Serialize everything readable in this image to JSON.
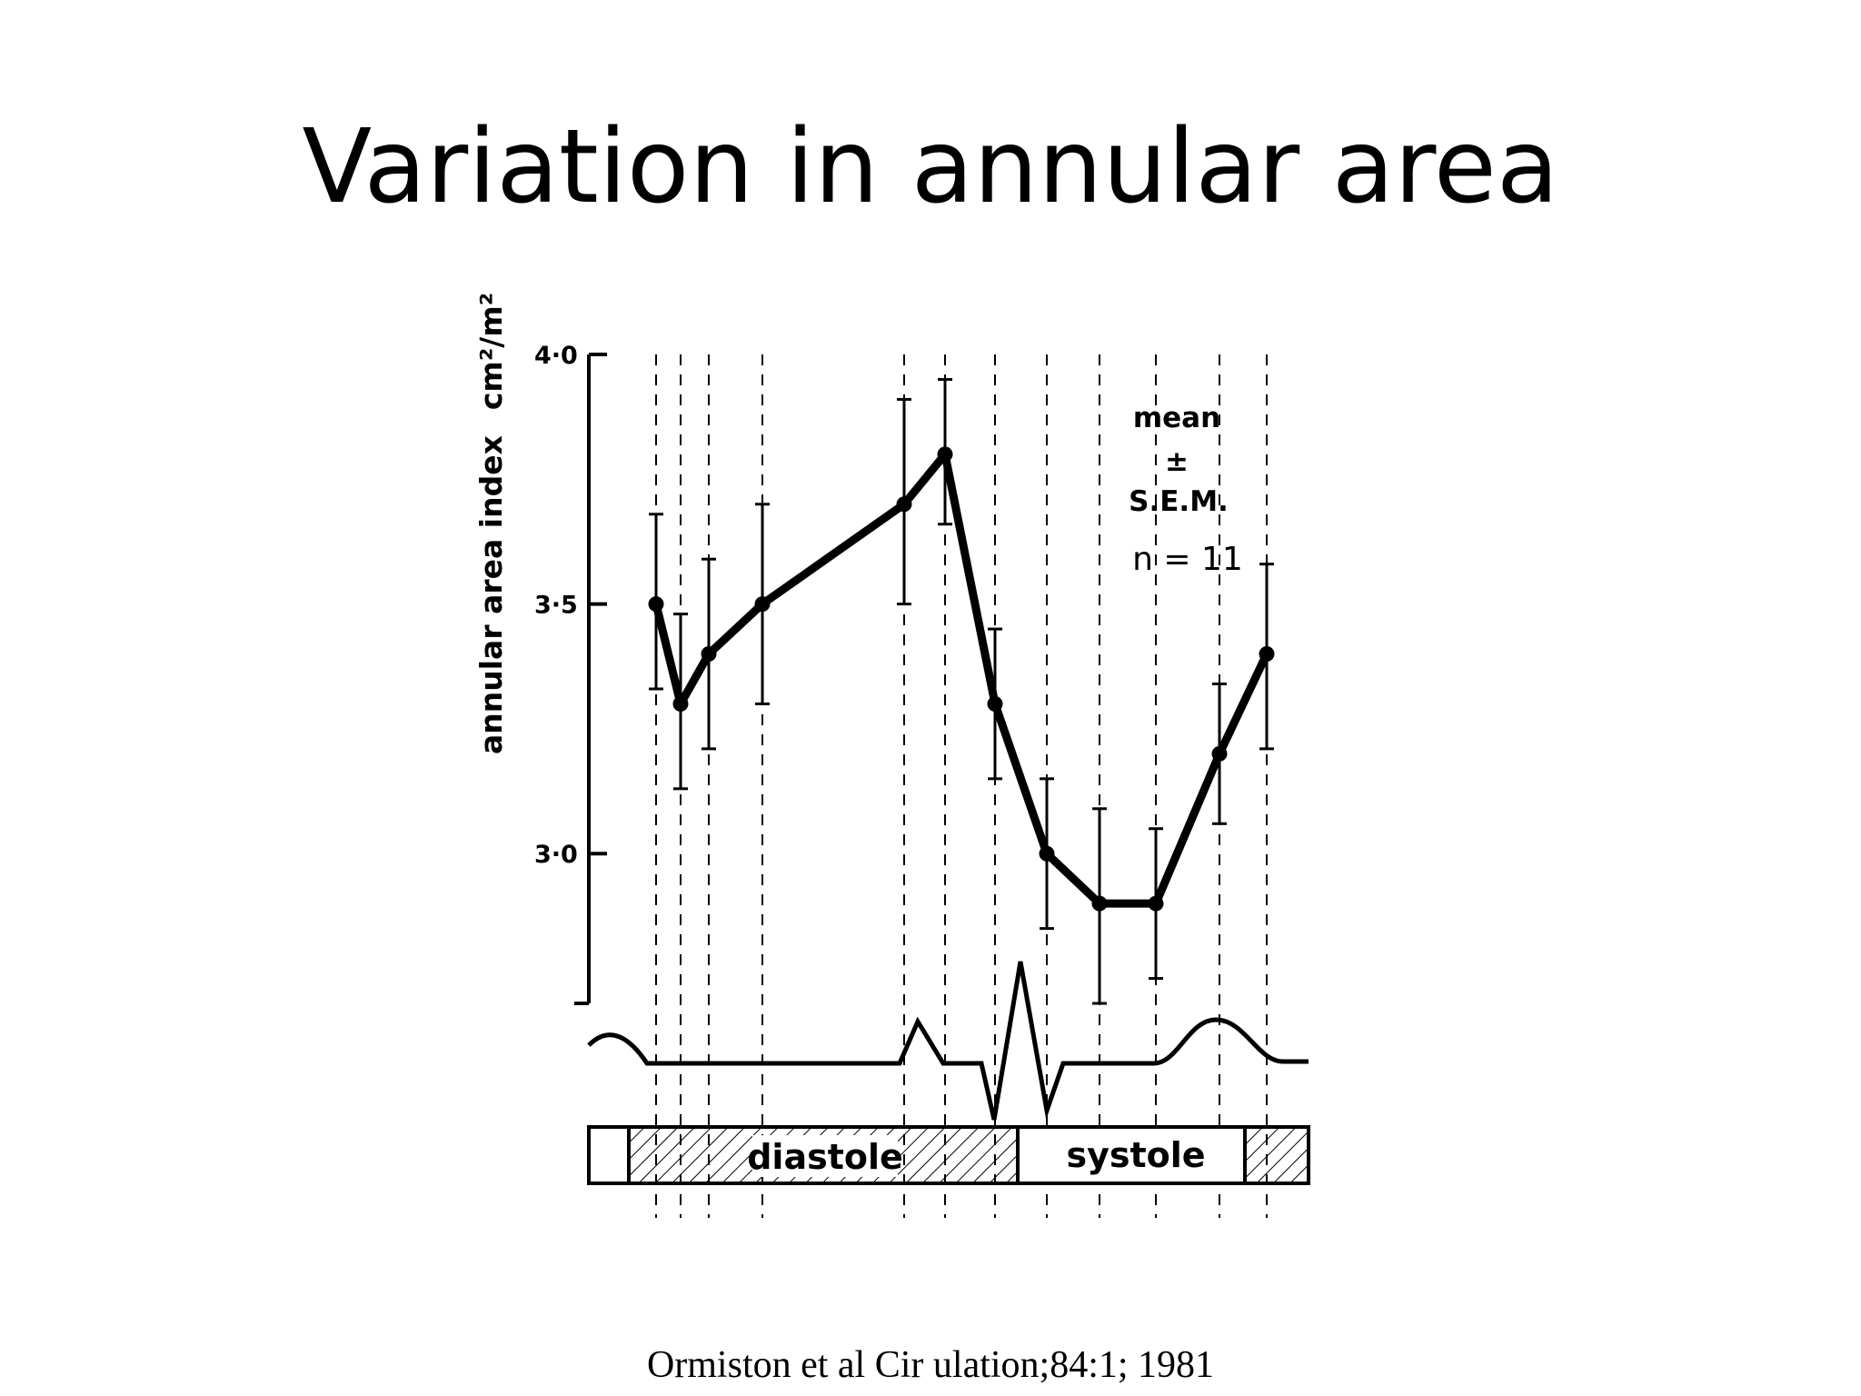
{
  "slide": {
    "title": "Variation in annular area",
    "citation": "Ormiston et al Cir ulation;84:1; 1981"
  },
  "chart_data": {
    "type": "line",
    "title": "",
    "ylabel": "annular area index",
    "yunit": "cm²/m²",
    "ylim": [
      2.7,
      4.0
    ],
    "yticks": [
      {
        "value": 4.0,
        "label": "4·0"
      },
      {
        "value": 3.5,
        "label": "3·5"
      },
      {
        "value": 3.0,
        "label": "3·0"
      }
    ],
    "legend": {
      "line1": "mean",
      "line2": "±",
      "line3": "S.E.M.",
      "line4": "n = 11",
      "placement": "top-right"
    },
    "series": [
      {
        "values": [
          3.5,
          3.3,
          3.4,
          3.5,
          3.7,
          3.8,
          3.3,
          3.0,
          2.9,
          2.9,
          3.2,
          3.4
        ],
        "sem_upper": [
          3.68,
          3.48,
          3.59,
          3.7,
          3.91,
          3.95,
          3.45,
          3.15,
          3.09,
          3.05,
          3.34,
          3.58
        ],
        "sem_lower": [
          3.33,
          3.13,
          3.21,
          3.3,
          3.5,
          3.66,
          3.15,
          2.85,
          2.7,
          2.75,
          3.06,
          3.21
        ]
      }
    ],
    "phases": [
      {
        "label": "diastole",
        "hatched": true
      },
      {
        "label": "systole",
        "hatched": false
      }
    ],
    "grid": "vertical dashed lines at each measurement",
    "ecg_trace": true
  }
}
